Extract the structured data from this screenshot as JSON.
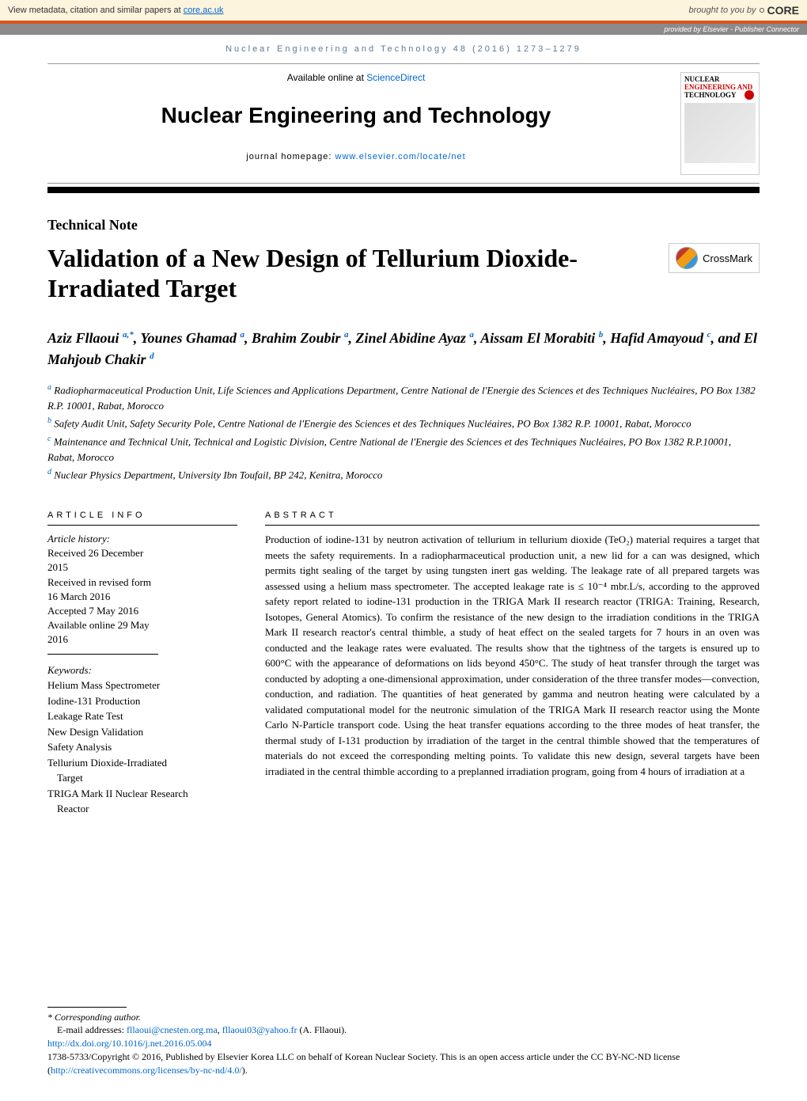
{
  "core_header": {
    "left_text": "View metadata, citation and similar papers at ",
    "left_link": "core.ac.uk",
    "brought_by": "brought to you by",
    "logo": "CORE"
  },
  "provided_bar": "provided by Elsevier - Publisher Connector",
  "citation": "Nuclear Engineering and Technology 48 (2016) 1273–1279",
  "header": {
    "available": "Available online at ",
    "sciencedirect": "ScienceDirect",
    "journal_name": "Nuclear Engineering and Technology",
    "homepage_label": "journal homepage: ",
    "homepage_url": "www.elsevier.com/locate/net",
    "cover_line1": "NUCLEAR",
    "cover_line2": "ENGINEERING AND",
    "cover_line3": "TECHNOLOGY"
  },
  "article_type": "Technical Note",
  "title": "Validation of a New Design of Tellurium Dioxide-Irradiated Target",
  "crossmark": "CrossMark",
  "authors": {
    "a1_name": "Aziz Fllaoui ",
    "a1_sup": "a,*",
    "a2_name": ", Younes Ghamad ",
    "a2_sup": "a",
    "a3_name": ", Brahim Zoubir ",
    "a3_sup": "a",
    "a4_name": ", Zinel Abidine Ayaz ",
    "a4_sup": "a",
    "a5_name": ", Aissam El Morabiti ",
    "a5_sup": "b",
    "a6_name": ", Hafid Amayoud ",
    "a6_sup": "c",
    "a7_name": ", and El Mahjoub Chakir ",
    "a7_sup": "d"
  },
  "affiliations": {
    "a": "Radiopharmaceutical Production Unit, Life Sciences and Applications Department, Centre National de l'Energie des Sciences et des Techniques Nucléaires, PO Box 1382 R.P. 10001, Rabat, Morocco",
    "b": "Safety Audit Unit, Safety Security Pole, Centre National de l'Energie des Sciences et des Techniques Nucléaires, PO Box 1382 R.P. 10001, Rabat, Morocco",
    "c": "Maintenance and Technical Unit, Technical and Logistic Division, Centre National de l'Energie des Sciences et des Techniques Nucléaires, PO Box 1382 R.P.10001, Rabat, Morocco",
    "d": "Nuclear Physics Department, University Ibn Toufail, BP 242, Kenitra, Morocco"
  },
  "info_heading": "ARTICLE INFO",
  "article_info": {
    "history_label": "Article history:",
    "received": "Received 26 December 2015",
    "revised1": "Received in revised form",
    "revised2": "16 March 2016",
    "accepted": "Accepted 7 May 2016",
    "online": "Available online 29 May 2016",
    "keywords_label": "Keywords:",
    "kw1": "Helium Mass Spectrometer",
    "kw2": "Iodine-131 Production",
    "kw3": "Leakage Rate Test",
    "kw4": "New Design Validation",
    "kw5": "Safety Analysis",
    "kw6a": "Tellurium Dioxide-Irradiated",
    "kw6b": "Target",
    "kw7a": "TRIGA Mark II Nuclear Research",
    "kw7b": "Reactor"
  },
  "abstract_heading": "ABSTRACT",
  "abstract": "Production of iodine-131 by neutron activation of tellurium in tellurium dioxide (TeO₂) material requires a target that meets the safety requirements. In a radiopharmaceutical production unit, a new lid for a can was designed, which permits tight sealing of the target by using tungsten inert gas welding. The leakage rate of all prepared targets was assessed using a helium mass spectrometer. The accepted leakage rate is ≤ 10⁻⁴ mbr.L/s, according to the approved safety report related to iodine-131 production in the TRIGA Mark II research reactor (TRIGA: Training, Research, Isotopes, General Atomics). To confirm the resistance of the new design to the irradiation conditions in the TRIGA Mark II research reactor's central thimble, a study of heat effect on the sealed targets for 7 hours in an oven was conducted and the leakage rates were evaluated. The results show that the tightness of the targets is ensured up to 600°C with the appearance of deformations on lids beyond 450°C. The study of heat transfer through the target was conducted by adopting a one-dimensional approximation, under consideration of the three transfer modes—convection, conduction, and radiation. The quantities of heat generated by gamma and neutron heating were calculated by a validated computational model for the neutronic simulation of the TRIGA Mark II research reactor using the Monte Carlo N-Particle transport code. Using the heat transfer equations according to the three modes of heat transfer, the thermal study of I-131 production by irradiation of the target in the central thimble showed that the temperatures of materials do not exceed the corresponding melting points. To validate this new design, several targets have been irradiated in the central thimble according to a preplanned irradiation program, going from 4 hours of irradiation at a",
  "footer": {
    "corresponding": "* Corresponding author.",
    "email_label": "E-mail addresses: ",
    "email1": "fllaoui@cnesten.org.ma",
    "email_sep": ", ",
    "email2": "fllaoui03@yahoo.fr",
    "email_author": " (A. Fllaoui).",
    "doi": "http://dx.doi.org/10.1016/j.net.2016.05.004",
    "copyright1": "1738-5733/Copyright © 2016, Published by Elsevier Korea LLC on behalf of Korean Nuclear Society. This is an open access article under the CC BY-NC-ND license (",
    "license_url": "http://creativecommons.org/licenses/by-nc-nd/4.0/",
    "copyright2": ")."
  }
}
